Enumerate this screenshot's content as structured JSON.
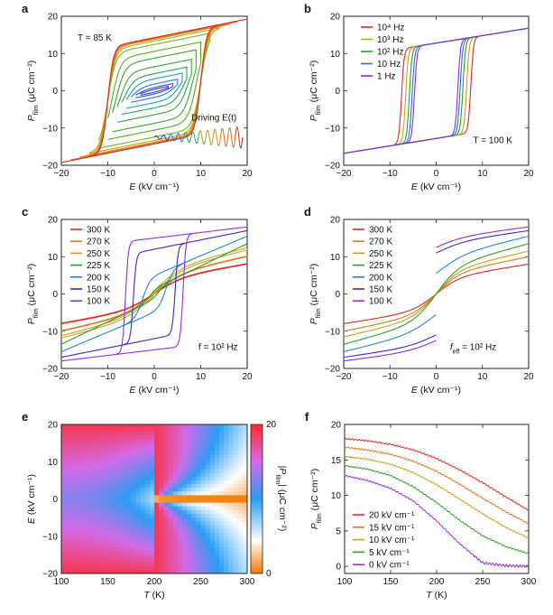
{
  "figure": {
    "panels": [
      {
        "letter": "a"
      },
      {
        "letter": "b"
      },
      {
        "letter": "c"
      },
      {
        "letter": "d"
      },
      {
        "letter": "e"
      },
      {
        "letter": "f"
      }
    ]
  },
  "chart_data": [
    {
      "panel": "a",
      "type": "line",
      "xlabel": "E (kV cm⁻¹)",
      "ylabel": "P_film (μC cm⁻²)",
      "xlim": [
        -20,
        20
      ],
      "ylim": [
        -20,
        20
      ],
      "xticks": [
        -20,
        -10,
        0,
        10,
        20
      ],
      "yticks": [
        -20,
        -10,
        0,
        10,
        20
      ],
      "annotations": [
        "T = 85 K",
        "Driving E(t)"
      ],
      "description_series": "minor hysteresis loops of increasing driving amplitude, colour from blue to red",
      "series": [
        {
          "amplitude": 3,
          "color": "#3030d0",
          "Pr": 0.5
        },
        {
          "amplitude": 4,
          "color": "#2850e0",
          "Pr": 1.0
        },
        {
          "amplitude": 5,
          "color": "#2a74e6",
          "Pr": 2.0
        },
        {
          "amplitude": 6,
          "color": "#1f9ad8",
          "Pr": 3.5
        },
        {
          "amplitude": 7,
          "color": "#22aa55",
          "Pr": 5.0
        },
        {
          "amplitude": 8,
          "color": "#30a830",
          "Pr": 7.0
        },
        {
          "amplitude": 9,
          "color": "#3aa62a",
          "Pr": 9.5
        },
        {
          "amplitude": 10,
          "color": "#52ae24",
          "Pr": 11.5
        },
        {
          "amplitude": 12,
          "color": "#7ab420",
          "Pr": 13.5
        },
        {
          "amplitude": 14,
          "color": "#b0aa18",
          "Pr": 14.5
        },
        {
          "amplitude": 16,
          "color": "#d49018",
          "Pr": 15.0
        },
        {
          "amplitude": 18,
          "color": "#e06a18",
          "Pr": 15.3
        },
        {
          "amplitude": 20,
          "color": "#e02a20",
          "Pr": 15.5
        }
      ],
      "Ps_at_20": 19.5,
      "Ec": 10
    },
    {
      "panel": "b",
      "type": "line",
      "xlabel": "E (kV cm⁻¹)",
      "ylabel": "P_film (μC cm⁻²)",
      "xlim": [
        -20,
        20
      ],
      "ylim": [
        -20,
        20
      ],
      "xticks": [
        -20,
        -10,
        0,
        10,
        20
      ],
      "yticks": [
        -20,
        -10,
        0,
        10,
        20
      ],
      "annotations": [
        "T = 100 K"
      ],
      "legend": [
        {
          "label": "10⁴ Hz",
          "color": "#e02a20"
        },
        {
          "label": "10³ Hz",
          "color": "#c8a21a"
        },
        {
          "label": "10² Hz",
          "color": "#2ca02c"
        },
        {
          "label": "10 Hz",
          "color": "#1f78d4"
        },
        {
          "label": "1 Hz",
          "color": "#8a2be2"
        }
      ],
      "series": [
        {
          "name": "10⁴ Hz",
          "Ec": 7.5,
          "Pr": 15.5,
          "color": "#e02a20"
        },
        {
          "name": "10³ Hz",
          "Ec": 6.6,
          "Pr": 15.3,
          "color": "#c8a21a"
        },
        {
          "name": "10² Hz",
          "Ec": 5.8,
          "Pr": 15.1,
          "color": "#2ca02c"
        },
        {
          "name": "10 Hz",
          "Ec": 5.2,
          "Pr": 14.9,
          "color": "#1f78d4"
        },
        {
          "name": "1 Hz",
          "Ec": 4.7,
          "Pr": 14.7,
          "color": "#8a2be2"
        }
      ]
    },
    {
      "panel": "c",
      "type": "line",
      "xlabel": "E (kV cm⁻¹)",
      "ylabel": "P_film (μC cm⁻²)",
      "xlim": [
        -20,
        20
      ],
      "ylim": [
        -20,
        20
      ],
      "xticks": [
        -20,
        -10,
        0,
        10,
        20
      ],
      "yticks": [
        -20,
        -10,
        0,
        10,
        20
      ],
      "annotations": [
        "f = 10² Hz"
      ],
      "legend": [
        {
          "label": "300 K",
          "color": "#e02a20"
        },
        {
          "label": "270 K",
          "color": "#e07a20"
        },
        {
          "label": "250 K",
          "color": "#c8a21a"
        },
        {
          "label": "225 K",
          "color": "#2ca02c"
        },
        {
          "label": "200 K",
          "color": "#1f8ad4"
        },
        {
          "label": "150 K",
          "color": "#3a2ad0"
        },
        {
          "label": "100 K",
          "color": "#9a2be2"
        }
      ],
      "series": [
        {
          "name": "300 K",
          "P_at_20": 8.0,
          "Ec": 0,
          "Pr": 0,
          "color": "#e02a20"
        },
        {
          "name": "270 K",
          "P_at_20": 10.0,
          "Ec": 0,
          "Pr": 0,
          "color": "#e07a20"
        },
        {
          "name": "250 K",
          "P_at_20": 11.5,
          "Ec": 0.5,
          "Pr": 0.5,
          "color": "#c8a21a"
        },
        {
          "name": "225 K",
          "P_at_20": 13.5,
          "Ec": 1.0,
          "Pr": 1.5,
          "color": "#2ca02c"
        },
        {
          "name": "200 K",
          "P_at_20": 15.5,
          "Ec": 2.5,
          "Pr": 5.0,
          "color": "#1f8ad4"
        },
        {
          "name": "150 K",
          "P_at_20": 17.0,
          "Ec": 4.5,
          "Pr": 12.0,
          "color": "#3a2ad0"
        },
        {
          "name": "100 K",
          "P_at_20": 18.0,
          "Ec": 6.2,
          "Pr": 15.0,
          "color": "#9a2be2"
        }
      ]
    },
    {
      "panel": "d",
      "type": "line",
      "xlabel": "E (kV cm⁻¹)",
      "ylabel": "P_film (μC cm⁻²)",
      "xlim": [
        -20,
        20
      ],
      "ylim": [
        -20,
        20
      ],
      "xticks": [
        -20,
        -10,
        0,
        10,
        20
      ],
      "yticks": [
        -20,
        -10,
        0,
        10,
        20
      ],
      "annotations": [
        "f_eff = 10² Hz"
      ],
      "legend": [
        {
          "label": "300 K",
          "color": "#e02a20"
        },
        {
          "label": "270 K",
          "color": "#e07a20"
        },
        {
          "label": "250 K",
          "color": "#c8a21a"
        },
        {
          "label": "225 K",
          "color": "#2ca02c"
        },
        {
          "label": "200 K",
          "color": "#1f8ad4"
        },
        {
          "label": "150 K",
          "color": "#3a2ad0"
        },
        {
          "label": "100 K",
          "color": "#9a2be2"
        }
      ],
      "series": [
        {
          "name": "300 K",
          "P0": 0,
          "P_at_20": 8.0,
          "color": "#e02a20"
        },
        {
          "name": "270 K",
          "P0": 0,
          "P_at_20": 10.0,
          "color": "#e07a20"
        },
        {
          "name": "250 K",
          "P0": 0,
          "P_at_20": 11.5,
          "color": "#c8a21a"
        },
        {
          "name": "225 K",
          "P0": 0.5,
          "P_at_20": 13.5,
          "color": "#2ca02c"
        },
        {
          "name": "200 K",
          "P0": 5.5,
          "P_at_20": 15.5,
          "color": "#1f8ad4"
        },
        {
          "name": "150 K",
          "P0": 11.0,
          "P_at_20": 17.0,
          "color": "#3a2ad0"
        },
        {
          "name": "100 K",
          "P0": 12.5,
          "P_at_20": 18.0,
          "color": "#9a2be2"
        }
      ]
    },
    {
      "panel": "e",
      "type": "heatmap",
      "xlabel": "T (K)",
      "ylabel": "E (kV cm⁻¹)",
      "xlim": [
        100,
        300
      ],
      "ylim": [
        -20,
        20
      ],
      "xticks": [
        100,
        150,
        200,
        250,
        300
      ],
      "yticks": [
        -20,
        -10,
        0,
        10,
        20
      ],
      "colorbar": {
        "label": "|P_film| (μC cm⁻²)",
        "min": 0,
        "max": 20,
        "ticks": [
          0,
          20
        ],
        "colors": [
          "#f47a00",
          "#ffffff",
          "#2a9df4",
          "#d46ae8",
          "#ff2a2a"
        ]
      }
    },
    {
      "panel": "f",
      "type": "line",
      "xlabel": "T (K)",
      "ylabel": "P_film (μC cm⁻²)",
      "xlim": [
        100,
        300
      ],
      "ylim": [
        -1,
        20
      ],
      "xticks": [
        100,
        150,
        200,
        250,
        300
      ],
      "yticks": [
        0,
        5,
        10,
        15,
        20
      ],
      "legend": [
        {
          "label": "20 kV cm⁻¹",
          "color": "#e02a20"
        },
        {
          "label": "15 kV cm⁻¹",
          "color": "#e07a20"
        },
        {
          "label": "10 kV cm⁻¹",
          "color": "#c8a21a"
        },
        {
          "label": "5 kV cm⁻¹",
          "color": "#2ca02c"
        },
        {
          "label": "0 kV cm⁻¹",
          "color": "#9a2be2"
        }
      ],
      "x": [
        100,
        125,
        150,
        175,
        200,
        225,
        250,
        275,
        300
      ],
      "series": [
        {
          "name": "20 kV cm⁻¹",
          "values": [
            18.0,
            17.7,
            17.2,
            16.4,
            15.2,
            13.6,
            11.8,
            9.8,
            7.9
          ]
        },
        {
          "name": "15 kV cm⁻¹",
          "values": [
            16.8,
            16.4,
            15.8,
            14.8,
            13.4,
            11.6,
            9.6,
            7.7,
            6.0
          ]
        },
        {
          "name": "10 kV cm⁻¹",
          "values": [
            15.5,
            15.1,
            14.4,
            13.2,
            11.5,
            9.5,
            7.4,
            5.5,
            4.0
          ]
        },
        {
          "name": "5 kV cm⁻¹",
          "values": [
            14.2,
            13.7,
            12.8,
            11.2,
            9.0,
            6.5,
            4.3,
            2.8,
            1.8
          ]
        },
        {
          "name": "0 kV cm⁻¹",
          "values": [
            12.8,
            12.1,
            11.0,
            9.2,
            6.4,
            3.2,
            0.5,
            0.1,
            0.0
          ]
        }
      ]
    }
  ]
}
